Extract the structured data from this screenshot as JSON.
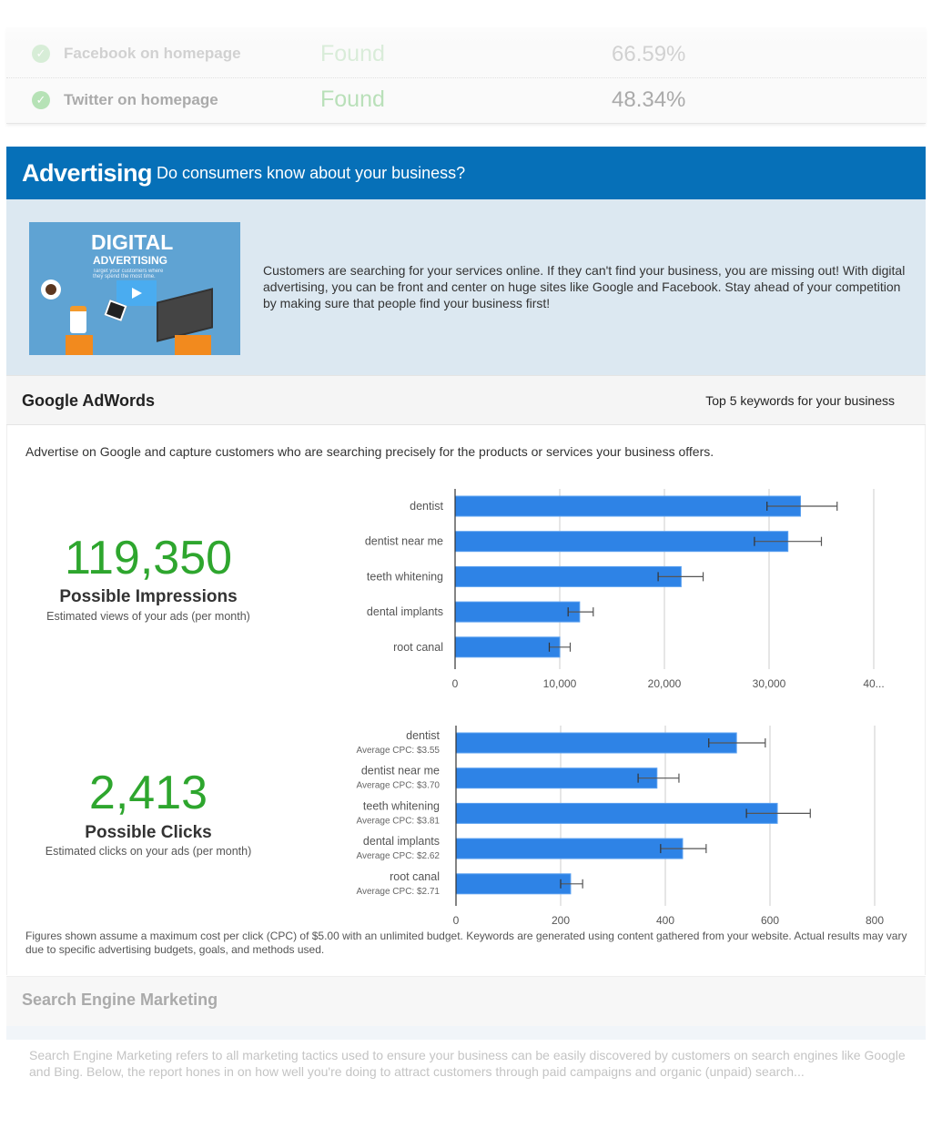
{
  "social_rows": [
    {
      "label": "Facebook on homepage",
      "status": "Found",
      "percent": "66.59%"
    },
    {
      "label": "Twitter on homepage",
      "status": "Found",
      "percent": "48.34%"
    }
  ],
  "advertising": {
    "title": "Advertising",
    "subtitle": "Do consumers know about your business?",
    "thumbnail": {
      "title": "DIGITAL",
      "subtitle": "ADVERTISING",
      "tagline": "Target your customers where they spend the most time."
    },
    "description": "Customers are searching for your services online. If they can't find your business, you are missing out! With digital advertising, you can be front and center on huge sites like Google and Facebook. Stay ahead of your competition by making sure that people find your business first!"
  },
  "adwords": {
    "title": "Google AdWords",
    "right_label": "Top 5 keywords for your business",
    "intro": "Advertise on Google and capture customers who are searching precisely for the products or services your business offers.",
    "impressions": {
      "value": "119,350",
      "label": "Possible Impressions",
      "sub": "Estimated views of your ads (per month)"
    },
    "clicks": {
      "value": "2,413",
      "label": "Possible Clicks",
      "sub": "Estimated clicks on your ads (per month)"
    },
    "footnote": "Figures shown assume a maximum cost per click (CPC) of $5.00 with an unlimited budget. Keywords are generated using content gathered from your website. Actual results may vary due to specific advertising budgets, goals, and methods used."
  },
  "chart_data": [
    {
      "type": "bar",
      "orientation": "horizontal",
      "categories": [
        "dentist",
        "dentist near me",
        "teeth whitening",
        "dental implants",
        "root canal"
      ],
      "values": [
        33000,
        31800,
        21600,
        11900,
        10000
      ],
      "error_low": [
        29800,
        28600,
        19400,
        10800,
        9000
      ],
      "error_high": [
        36500,
        35000,
        23700,
        13200,
        11000
      ],
      "xlim": [
        0,
        40000
      ],
      "ticks": [
        "0",
        "10,000",
        "20,000",
        "30,000",
        "40..."
      ],
      "tick_values": [
        0,
        10000,
        20000,
        30000,
        40000
      ],
      "grid": true,
      "color": "#2e83e6"
    },
    {
      "type": "bar",
      "orientation": "horizontal",
      "categories": [
        "dentist",
        "dentist near me",
        "teeth whitening",
        "dental implants",
        "root canal"
      ],
      "category_sublabels": [
        "Average CPC: $3.55",
        "Average CPC: $3.70",
        "Average CPC: $3.81",
        "Average CPC: $2.62",
        "Average CPC: $2.71"
      ],
      "values": [
        536,
        384,
        614,
        433,
        219
      ],
      "error_low": [
        483,
        348,
        555,
        391,
        200
      ],
      "error_high": [
        591,
        426,
        677,
        478,
        242
      ],
      "xlim": [
        0,
        800
      ],
      "ticks": [
        "0",
        "200",
        "400",
        "600",
        "800"
      ],
      "tick_values": [
        0,
        200,
        400,
        600,
        800
      ],
      "grid": true,
      "color": "#2e83e6"
    }
  ],
  "sem": {
    "title": "Search Engine Marketing",
    "description": "Search Engine Marketing refers to all marketing tactics used to ensure your business can be easily discovered by customers on search engines like Google and Bing. Below, the report hones in on how well you're doing to attract customers through paid campaigns and organic (unpaid) search..."
  }
}
